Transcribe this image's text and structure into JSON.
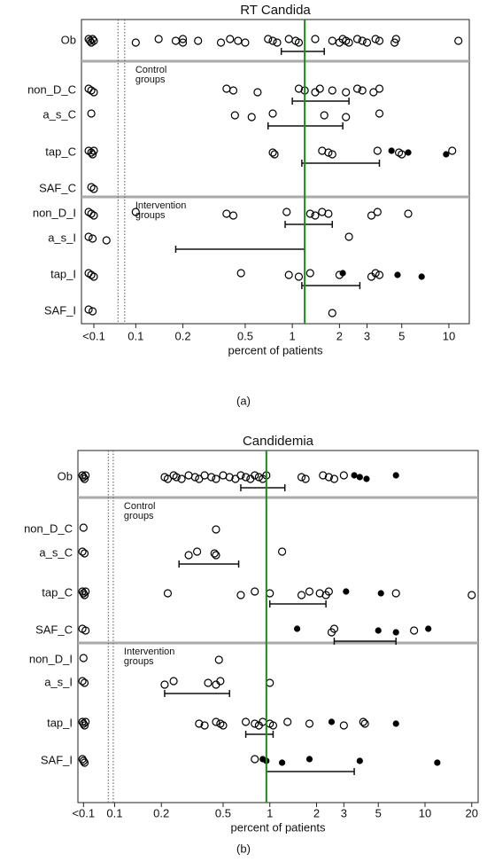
{
  "chart_data": [
    {
      "type": "scatter",
      "title": "RT Candida",
      "xlabel": "percent of patients",
      "panel": "(a)",
      "log_x": true,
      "xlim": [
        0.045,
        13.5
      ],
      "xticks": [
        {
          "value": 0.054,
          "label": "<0.1"
        },
        0.1,
        0.2,
        0.5,
        1,
        2,
        3,
        5,
        10
      ],
      "dividers": [
        0.077,
        0.085
      ],
      "reference": 1.2,
      "reference_color": "#1a8a1a",
      "point_color": "#000",
      "annotations": [
        {
          "row": 1,
          "lines": [
            "Control",
            "groups"
          ]
        },
        {
          "row": 5,
          "lines": [
            "Intervention",
            "groups"
          ]
        }
      ],
      "rows": [
        {
          "label": "Ob",
          "open": [
            0.05,
            0.051,
            0.052,
            0.053,
            0.054,
            0.1,
            0.14,
            0.18,
            0.2,
            0.2,
            0.25,
            0.35,
            0.4,
            0.45,
            0.5,
            0.7,
            0.75,
            0.8,
            0.95,
            1.05,
            1.1,
            1.4,
            1.8,
            2.0,
            2.1,
            2.2,
            2.3,
            2.6,
            2.8,
            3.0,
            3.4,
            3.6,
            4.5,
            4.6,
            11.5
          ],
          "filled": [],
          "ci": [
            0.85,
            1.6
          ]
        },
        {
          "label": "non_D_C",
          "open": [
            0.05,
            0.052,
            0.054,
            0.38,
            0.42,
            0.6,
            1.1,
            1.2,
            1.4,
            1.5,
            1.8,
            2.2,
            2.6,
            2.8,
            3.3,
            3.6
          ],
          "filled": [],
          "ci": [
            1.0,
            2.3
          ]
        },
        {
          "label": "a_s_C",
          "open": [
            0.052,
            0.43,
            0.55,
            0.75,
            1.6,
            2.2,
            3.6
          ],
          "filled": [],
          "ci": [
            0.7,
            2.1
          ]
        },
        {
          "label": "tap_C",
          "open": [
            0.05,
            0.052,
            0.053,
            0.054,
            0.75,
            0.77,
            1.55,
            1.7,
            1.8,
            3.5,
            4.8,
            5.0,
            10.5
          ],
          "filled": [
            4.3,
            5.5,
            9.6
          ],
          "ci": [
            1.15,
            3.6
          ]
        },
        {
          "label": "SAF_C",
          "open": [
            0.052,
            0.054
          ],
          "filled": [],
          "ci": null
        },
        {
          "label": "non_D_I",
          "open": [
            0.05,
            0.052,
            0.054,
            0.1,
            0.38,
            0.42,
            0.92,
            1.3,
            1.4,
            1.55,
            1.7,
            3.2,
            3.5,
            5.5
          ],
          "filled": [],
          "ci": [
            0.9,
            1.8
          ]
        },
        {
          "label": "a_s_I",
          "open": [
            0.05,
            0.053,
            0.065,
            2.3
          ],
          "filled": [],
          "ci": [
            0.18,
            1.2
          ]
        },
        {
          "label": "tap_I",
          "open": [
            0.05,
            0.052,
            0.054,
            0.47,
            0.95,
            1.1,
            1.3,
            2.0,
            3.2,
            3.4,
            3.6
          ],
          "filled": [
            2.1,
            4.7,
            6.7
          ],
          "ci": [
            1.15,
            2.7
          ]
        },
        {
          "label": "SAF_I",
          "open": [
            0.05,
            0.053,
            1.8
          ],
          "filled": [],
          "ci": null
        }
      ]
    },
    {
      "type": "scatter",
      "title": "Candidemia",
      "xlabel": "percent of patients",
      "panel": "(b)",
      "log_x": true,
      "xlim": [
        0.058,
        22
      ],
      "xticks": [
        {
          "value": 0.063,
          "label": "<0.1"
        },
        0.1,
        0.2,
        0.5,
        1,
        2,
        3,
        5,
        10,
        20
      ],
      "dividers": [
        0.091,
        0.098
      ],
      "reference": 0.95,
      "reference_color": "#1a8a1a",
      "point_color": "#000",
      "annotations": [
        {
          "row": 1,
          "lines": [
            "Control",
            "groups"
          ]
        },
        {
          "row": 5,
          "lines": [
            "Intervention",
            "groups"
          ]
        }
      ],
      "rows": [
        {
          "label": "Ob",
          "open": [
            0.062,
            0.063,
            0.064,
            0.065,
            0.21,
            0.22,
            0.24,
            0.25,
            0.27,
            0.3,
            0.33,
            0.35,
            0.38,
            0.42,
            0.45,
            0.5,
            0.55,
            0.6,
            0.65,
            0.7,
            0.75,
            0.8,
            0.85,
            0.9,
            0.95,
            1.6,
            1.7,
            2.2,
            2.4,
            2.6,
            3.0
          ],
          "filled": [
            3.5,
            3.8,
            4.2,
            6.5
          ],
          "ci": [
            0.65,
            1.25
          ]
        },
        {
          "label": "non_D_C",
          "open": [
            0.063,
            0.45
          ],
          "filled": [],
          "ci": null
        },
        {
          "label": "a_s_C",
          "open": [
            0.062,
            0.064,
            0.3,
            0.34,
            0.44,
            0.45,
            1.2
          ],
          "filled": [],
          "ci": [
            0.26,
            0.63
          ]
        },
        {
          "label": "tap_C",
          "open": [
            0.062,
            0.063,
            0.064,
            0.065,
            0.22,
            0.65,
            0.8,
            1.0,
            1.6,
            1.8,
            2.1,
            2.3,
            2.4,
            6.5,
            20
          ],
          "filled": [
            3.1,
            5.2
          ],
          "ci": [
            1.0,
            2.3
          ]
        },
        {
          "label": "SAF_C",
          "open": [
            0.062,
            0.065,
            2.5,
            2.6,
            8.5
          ],
          "filled": [
            1.5,
            5,
            6.5,
            10.5
          ],
          "ci": [
            2.6,
            6.5
          ]
        },
        {
          "label": "non_D_I",
          "open": [
            0.063,
            0.47
          ],
          "filled": [],
          "ci": null
        },
        {
          "label": "a_s_I",
          "open": [
            0.062,
            0.064,
            0.21,
            0.24,
            0.4,
            0.45,
            0.48,
            1.0
          ],
          "filled": [],
          "ci": [
            0.21,
            0.55
          ]
        },
        {
          "label": "tap_I",
          "open": [
            0.062,
            0.063,
            0.064,
            0.065,
            0.35,
            0.38,
            0.45,
            0.48,
            0.5,
            0.7,
            0.8,
            0.85,
            0.9,
            1.0,
            1.05,
            1.3,
            1.8,
            3.0,
            4.0,
            4.1
          ],
          "filled": [
            2.5,
            6.5
          ],
          "ci": [
            0.7,
            1.05
          ]
        },
        {
          "label": "SAF_I",
          "open": [
            0.062,
            0.063,
            0.064,
            0.8
          ],
          "filled": [
            0.9,
            0.95,
            1.2,
            1.8,
            3.8,
            12
          ],
          "ci": [
            0.95,
            3.5
          ]
        }
      ]
    }
  ]
}
